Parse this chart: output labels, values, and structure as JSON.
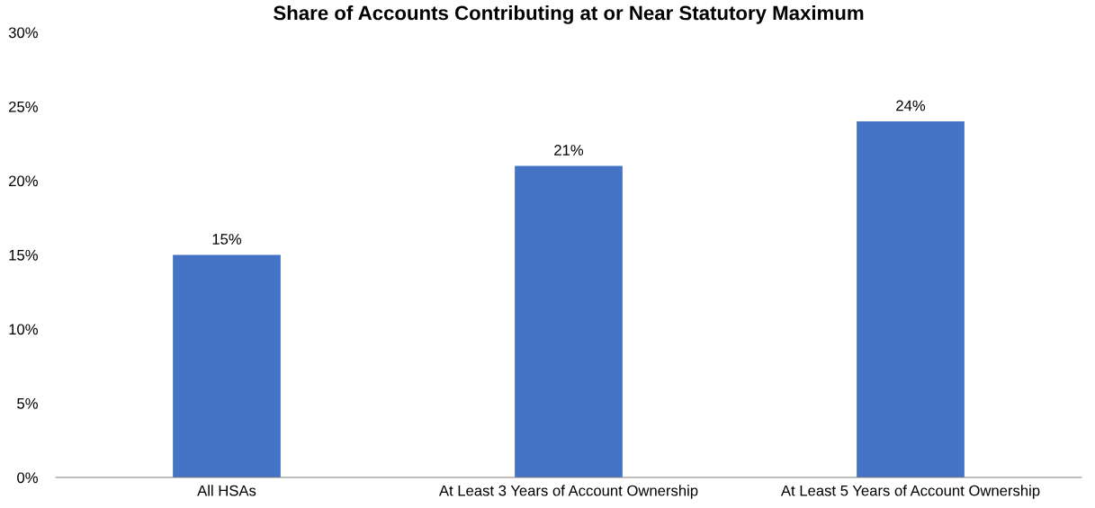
{
  "chart_data": {
    "type": "bar",
    "title": "Share of Accounts Contributing at or Near Statutory Maximum",
    "categories": [
      "All HSAs",
      "At Least 3 Years of Account Ownership",
      "At Least 5 Years of Account Ownership"
    ],
    "values": [
      15,
      21,
      24
    ],
    "color": "#4472c4",
    "value_labels": [
      "15%",
      "21%",
      "24%"
    ],
    "ylim": [
      0,
      30
    ],
    "yticks": [
      {
        "value": 0,
        "label": "0%"
      },
      {
        "value": 5,
        "label": "5%"
      },
      {
        "value": 10,
        "label": "10%"
      },
      {
        "value": 15,
        "label": "15%"
      },
      {
        "value": 20,
        "label": "20%"
      },
      {
        "value": 25,
        "label": "25%"
      },
      {
        "value": 30,
        "label": "30%"
      }
    ],
    "grid": false,
    "legend": false
  }
}
